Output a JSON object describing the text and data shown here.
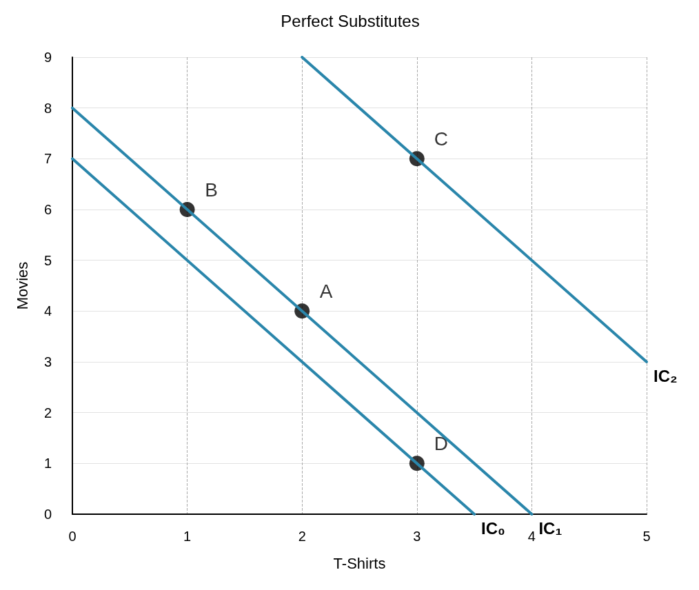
{
  "chart_data": {
    "type": "line",
    "title": "Perfect Substitutes",
    "xlabel": "T-Shirts",
    "ylabel": "Movies",
    "xlim": [
      0,
      5
    ],
    "xticks": [
      0,
      1,
      2,
      3,
      4,
      5
    ],
    "ylim": [
      0,
      9
    ],
    "yticks": [
      0,
      1,
      2,
      3,
      4,
      5,
      6,
      7,
      8,
      9
    ],
    "grid": true,
    "legend": false,
    "marker": "none",
    "line_style": "solid",
    "series": [
      {
        "name": "IC₀",
        "color": "#2a86ab",
        "x": [
          0,
          3.5
        ],
        "values": [
          7,
          0
        ]
      },
      {
        "name": "IC₁",
        "color": "#2a86ab",
        "x": [
          0,
          4
        ],
        "values": [
          8,
          0
        ]
      },
      {
        "name": "IC₂",
        "color": "#2a86ab",
        "x": [
          2,
          5
        ],
        "values": [
          9,
          3
        ]
      },
      {
        "type": "scatter",
        "marker": "circle",
        "color": "#000000",
        "x": [
          1,
          2,
          3,
          3
        ],
        "values": [
          6,
          4,
          7,
          1
        ]
      }
    ],
    "annotations": [
      {
        "text": "B",
        "x": 1,
        "y": 6
      },
      {
        "text": "A",
        "x": 2,
        "y": 4
      },
      {
        "text": "C",
        "x": 3,
        "y": 7
      },
      {
        "text": "D",
        "x": 3,
        "y": 1
      }
    ]
  }
}
